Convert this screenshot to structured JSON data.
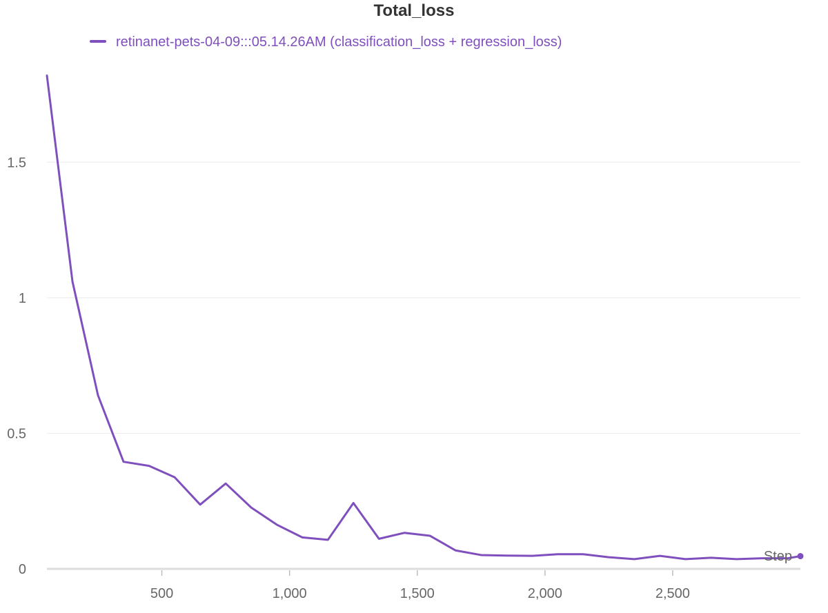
{
  "chart_data": {
    "type": "line",
    "title": "Total_loss",
    "xlabel": "Step",
    "ylabel": "",
    "xlim": [
      50,
      3000
    ],
    "ylim": [
      0,
      1.9
    ],
    "x_ticks": [
      500,
      1000,
      1500,
      2000,
      2500
    ],
    "x_tick_labels": [
      "500",
      "1,000",
      "1,500",
      "2,000",
      "2,500"
    ],
    "y_ticks": [
      0,
      0.5,
      1,
      1.5
    ],
    "y_tick_labels": [
      "0",
      "0.5",
      "1",
      "1.5"
    ],
    "grid": true,
    "legend_position": "top-left",
    "series": [
      {
        "name": "retinanet-pets-04-09:::05.14.26AM (classification_loss + regression_loss)",
        "color": "#7f4fbd",
        "x": [
          50,
          150,
          250,
          350,
          450,
          550,
          650,
          750,
          850,
          950,
          1050,
          1150,
          1250,
          1350,
          1450,
          1550,
          1650,
          1750,
          1850,
          1950,
          2050,
          2150,
          2250,
          2350,
          2450,
          2550,
          2650,
          2750,
          2850,
          2950,
          3000
        ],
        "y": [
          1.82,
          1.06,
          0.64,
          0.395,
          0.38,
          0.338,
          0.237,
          0.315,
          0.226,
          0.163,
          0.116,
          0.107,
          0.243,
          0.111,
          0.133,
          0.122,
          0.068,
          0.051,
          0.049,
          0.048,
          0.054,
          0.054,
          0.043,
          0.036,
          0.048,
          0.036,
          0.041,
          0.036,
          0.039,
          0.039,
          0.047
        ]
      }
    ]
  }
}
